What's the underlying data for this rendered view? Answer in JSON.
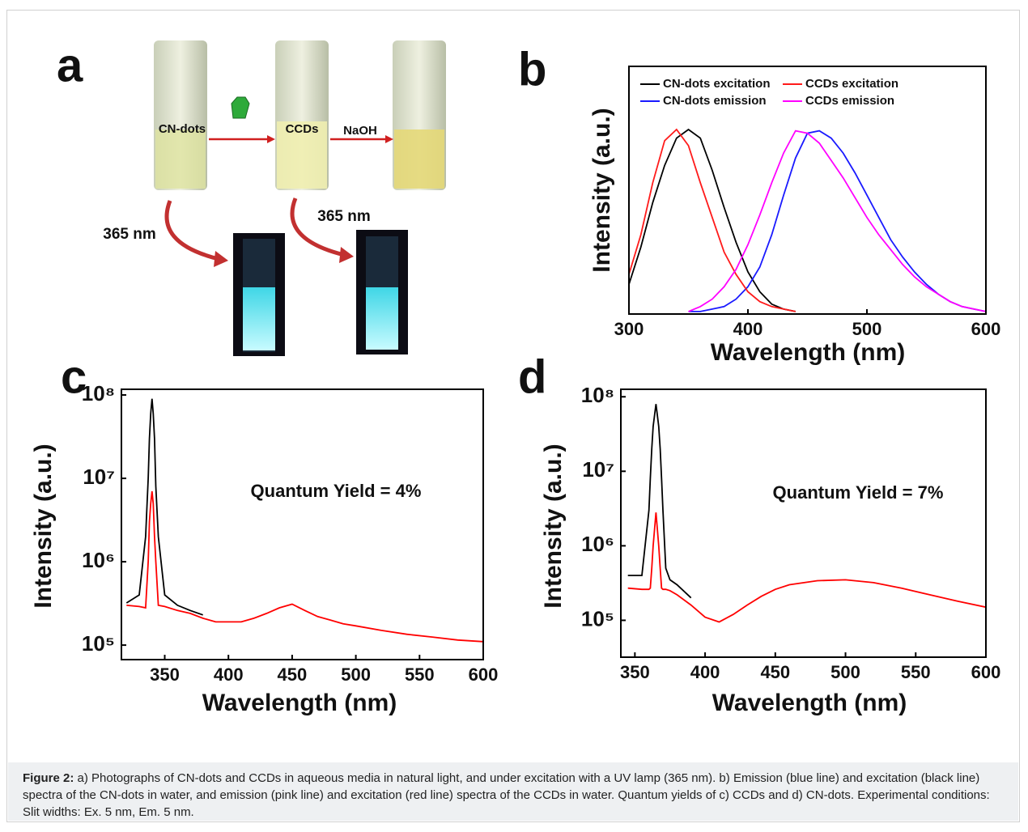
{
  "panel_a": {
    "panel": "a",
    "label_1": "CN-dots",
    "label_2": "CCDs",
    "label_3": "NaOH",
    "uv_1": "365 nm",
    "uv_2": "365 nm"
  },
  "chart_data": [
    {
      "type": "line",
      "panel": "b",
      "xlabel": "Wavelength (nm)",
      "ylabel": "Intensity (a.u.)",
      "x": [
        300,
        310,
        320,
        330,
        340,
        350,
        360,
        370,
        380,
        390,
        400,
        410,
        420,
        430,
        440,
        450,
        460,
        470,
        480,
        490,
        500,
        510,
        520,
        530,
        540,
        550,
        560,
        570,
        580,
        590,
        600
      ],
      "xlim": [
        300,
        600
      ],
      "xticks": [
        300,
        400,
        500,
        600
      ],
      "ylim": [
        0,
        1
      ],
      "legend": "top",
      "series": [
        {
          "name": "CN-dots excitation",
          "color": "#000000",
          "values": [
            0.12,
            0.27,
            0.45,
            0.6,
            0.71,
            0.745,
            0.71,
            0.58,
            0.43,
            0.29,
            0.17,
            0.09,
            0.04,
            0.02,
            0.01,
            null,
            null,
            null,
            null,
            null,
            null,
            null,
            null,
            null,
            null,
            null,
            null,
            null,
            null,
            null,
            null
          ]
        },
        {
          "name": "CN-dots emission",
          "color": "#1a1aff",
          "values": [
            null,
            null,
            null,
            null,
            null,
            0.01,
            0.01,
            0.02,
            0.03,
            0.06,
            0.11,
            0.19,
            0.32,
            0.48,
            0.63,
            0.73,
            0.74,
            0.71,
            0.65,
            0.57,
            0.48,
            0.39,
            0.3,
            0.23,
            0.17,
            0.12,
            0.08,
            0.05,
            0.03,
            0.02,
            0.01
          ]
        },
        {
          "name": "CCDs excitation",
          "color": "#ff1a1a",
          "values": [
            0.16,
            0.32,
            0.53,
            0.7,
            0.745,
            0.68,
            0.53,
            0.39,
            0.25,
            0.16,
            0.09,
            0.05,
            0.03,
            0.02,
            0.01,
            null,
            null,
            null,
            null,
            null,
            null,
            null,
            null,
            null,
            null,
            null,
            null,
            null,
            null,
            null,
            null
          ]
        },
        {
          "name": "CCDs emission",
          "color": "#ff00ff",
          "values": [
            null,
            null,
            null,
            null,
            null,
            0.01,
            0.03,
            0.06,
            0.11,
            0.18,
            0.28,
            0.4,
            0.53,
            0.65,
            0.74,
            0.73,
            0.69,
            0.62,
            0.55,
            0.47,
            0.39,
            0.32,
            0.26,
            0.2,
            0.15,
            0.11,
            0.08,
            0.05,
            0.03,
            0.02,
            0.01
          ]
        }
      ]
    },
    {
      "type": "line",
      "panel": "c",
      "xlabel": "Wavelength (nm)",
      "ylabel": "Intensity (a.u.)",
      "annotation": "Quantum Yield = 4%",
      "yscale": "log",
      "x": [
        320,
        330,
        335,
        337,
        338,
        339,
        340,
        341,
        342,
        343,
        345,
        350,
        360,
        370,
        380,
        390,
        400,
        410,
        420,
        430,
        440,
        450,
        460,
        470,
        480,
        490,
        500,
        520,
        540,
        560,
        580,
        600
      ],
      "xlim": [
        316,
        600
      ],
      "xticks": [
        350,
        400,
        450,
        500,
        550,
        600
      ],
      "ylim": [
        67000,
        117000000
      ],
      "yticks": [
        {
          "value": 100000,
          "label": "10⁵"
        },
        {
          "value": 1000000,
          "label": "10⁶"
        },
        {
          "value": 10000000,
          "label": "10⁷"
        },
        {
          "value": 100000000,
          "label": "10⁸"
        }
      ],
      "series": [
        {
          "color": "#000000",
          "values": [
            320000,
            400000,
            2000000,
            10000000,
            30000000,
            60000000,
            90000000,
            60000000,
            30000000,
            8000000,
            2000000,
            400000,
            300000,
            260000,
            230000,
            null,
            null,
            null,
            null,
            null,
            null,
            null,
            null,
            null,
            null,
            null,
            null,
            null,
            null,
            null,
            null,
            null
          ]
        },
        {
          "color": "#ff0000",
          "values": [
            300000,
            290000,
            280000,
            1000000,
            3000000,
            5000000,
            7000000,
            5000000,
            2000000,
            1000000,
            300000,
            290000,
            260000,
            240000,
            210000,
            190000,
            190000,
            190000,
            210000,
            240000,
            280000,
            310000,
            260000,
            220000,
            200000,
            180000,
            170000,
            150000,
            135000,
            125000,
            115000,
            110000
          ]
        }
      ]
    },
    {
      "type": "line",
      "panel": "d",
      "xlabel": "Wavelength (nm)",
      "ylabel": "Intensity (a.u.)",
      "annotation": "Quantum Yield = 7%",
      "yscale": "log",
      "x": [
        345,
        355,
        360,
        361,
        362,
        363,
        365,
        367,
        368,
        369,
        370,
        372,
        375,
        380,
        390,
        400,
        410,
        420,
        430,
        440,
        450,
        460,
        480,
        500,
        520,
        540,
        560,
        580,
        600
      ],
      "xlim": [
        340,
        600
      ],
      "xticks": [
        350,
        400,
        450,
        500,
        550,
        600
      ],
      "ylim": [
        32000,
        126000000
      ],
      "yticks": [
        {
          "value": 100000,
          "label": "10⁵"
        },
        {
          "value": 1000000,
          "label": "10⁶"
        },
        {
          "value": 10000000,
          "label": "10⁷"
        },
        {
          "value": 100000000,
          "label": "10⁸"
        }
      ],
      "series": [
        {
          "color": "#000000",
          "values": [
            400000,
            400000,
            3000000,
            8000000,
            20000000,
            40000000,
            80000000,
            40000000,
            20000000,
            8000000,
            3000000,
            500000,
            350000,
            300000,
            200000,
            null,
            null,
            null,
            null,
            null,
            null,
            null,
            null,
            null,
            null,
            null,
            null,
            null,
            null
          ]
        },
        {
          "color": "#ff0000",
          "values": [
            270000,
            260000,
            260000,
            270000,
            500000,
            1000000,
            2800000,
            1000000,
            500000,
            270000,
            260000,
            260000,
            250000,
            220000,
            160000,
            110000,
            95000,
            120000,
            160000,
            210000,
            260000,
            300000,
            340000,
            350000,
            320000,
            270000,
            220000,
            180000,
            150000
          ]
        }
      ]
    }
  ],
  "caption": {
    "label": "Figure 2:",
    "text": "a) Photographs of CN-dots and CCDs in aqueous media in natural light, and under excitation with a UV lamp (365 nm). b) Emission (blue line) and excitation (black line) spectra of the CN-dots in water, and emission (pink line) and excitation (red line) spectra of the CCDs in water. Quantum yields of c) CCDs and d) CN-dots. Experimental conditions: Slit widths: Ex. 5 nm, Em. 5 nm."
  }
}
